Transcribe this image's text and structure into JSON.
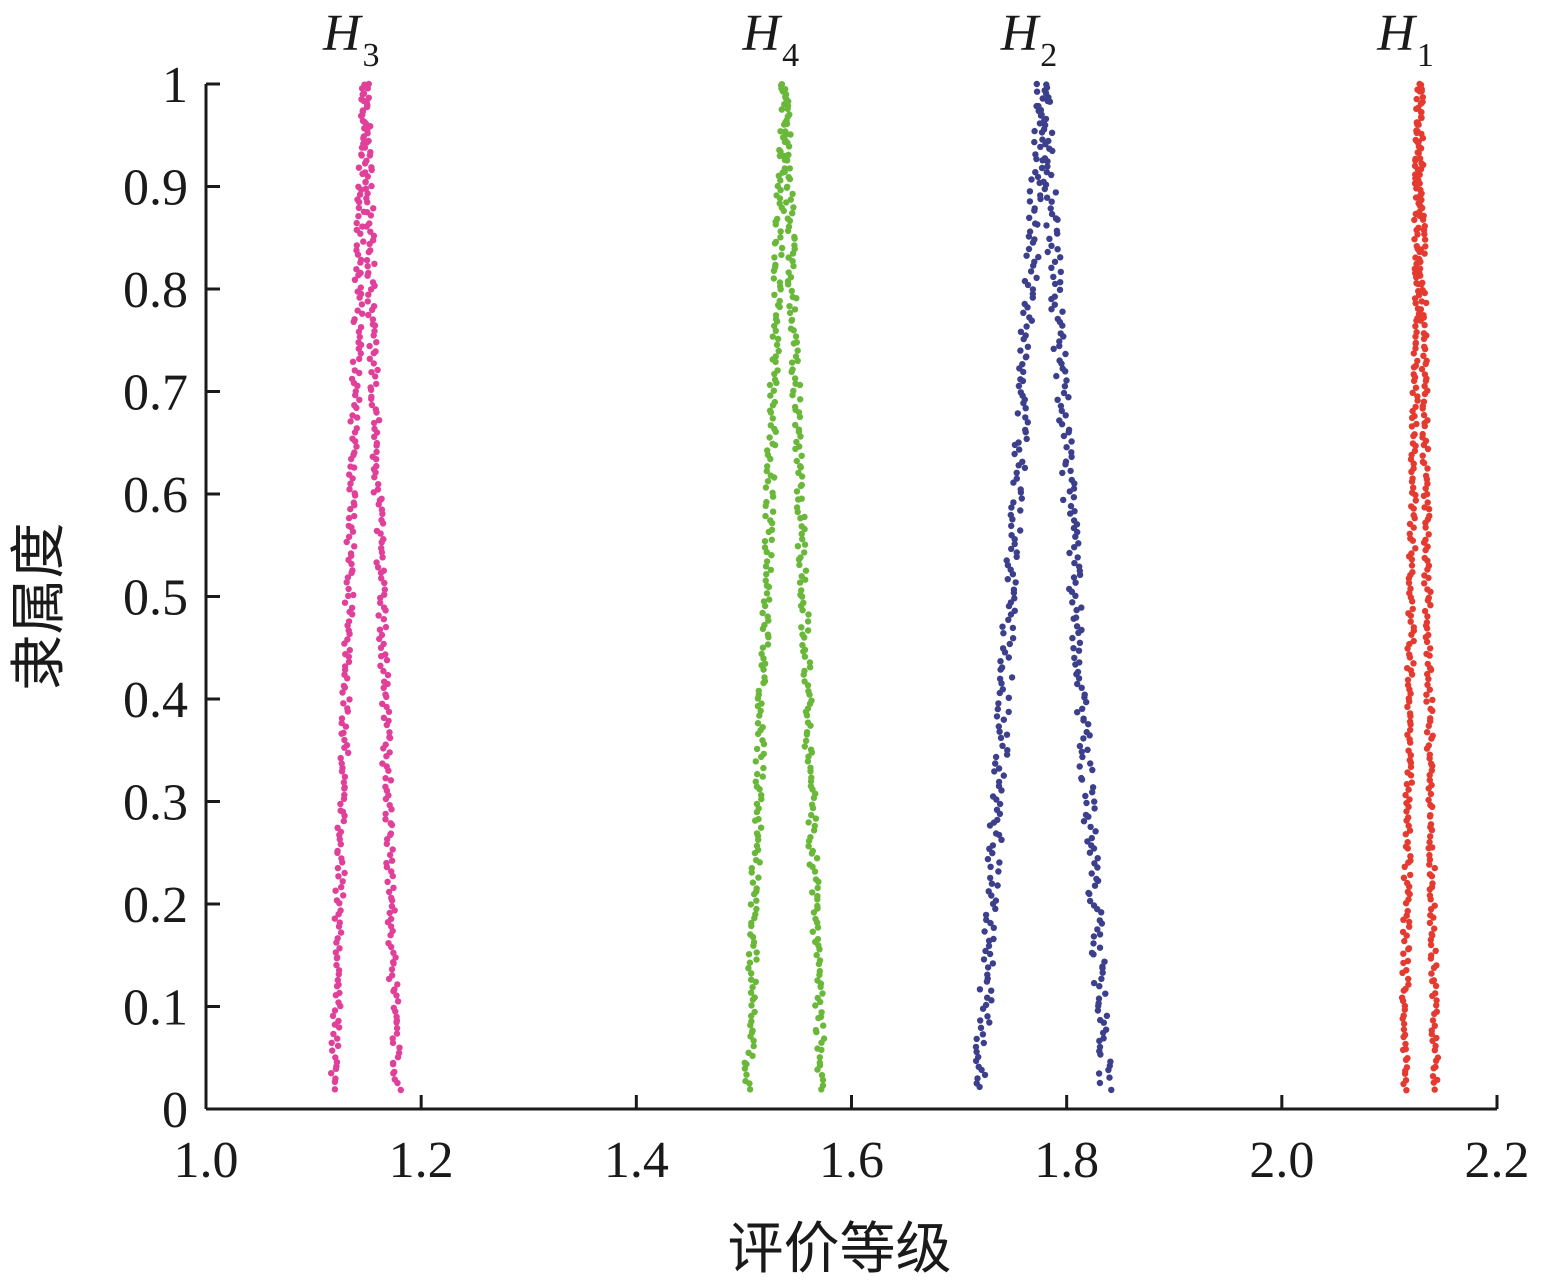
{
  "chart_data": {
    "type": "scatter",
    "xlabel": "评价等级",
    "ylabel": "隶属度",
    "xlim": [
      1.0,
      2.2
    ],
    "ylim": [
      0,
      1
    ],
    "x_ticks": [
      "1.0",
      "1.2",
      "1.4",
      "1.6",
      "1.8",
      "2.0",
      "2.2"
    ],
    "y_ticks": [
      "0",
      "0.1",
      "0.2",
      "0.3",
      "0.4",
      "0.5",
      "0.6",
      "0.7",
      "0.8",
      "0.9",
      "1"
    ],
    "grid": false,
    "series": [
      {
        "label": "H",
        "sub": "3",
        "color": "#e0409a",
        "peak_x": 1.148,
        "left_x": 1.118,
        "right_x": 1.178,
        "spread": 0.004
      },
      {
        "label": "H",
        "sub": "4",
        "color": "#6ab83a",
        "peak_x": 1.538,
        "left_x": 1.503,
        "right_x": 1.573,
        "spread": 0.004
      },
      {
        "label": "H",
        "sub": "2",
        "color": "#3c3f8c",
        "peak_x": 1.778,
        "left_x": 1.718,
        "right_x": 1.838,
        "spread": 0.006
      },
      {
        "label": "H",
        "sub": "1",
        "color": "#e43a30",
        "peak_x": 2.128,
        "left_x": 2.113,
        "right_x": 2.143,
        "spread": 0.003
      }
    ]
  }
}
